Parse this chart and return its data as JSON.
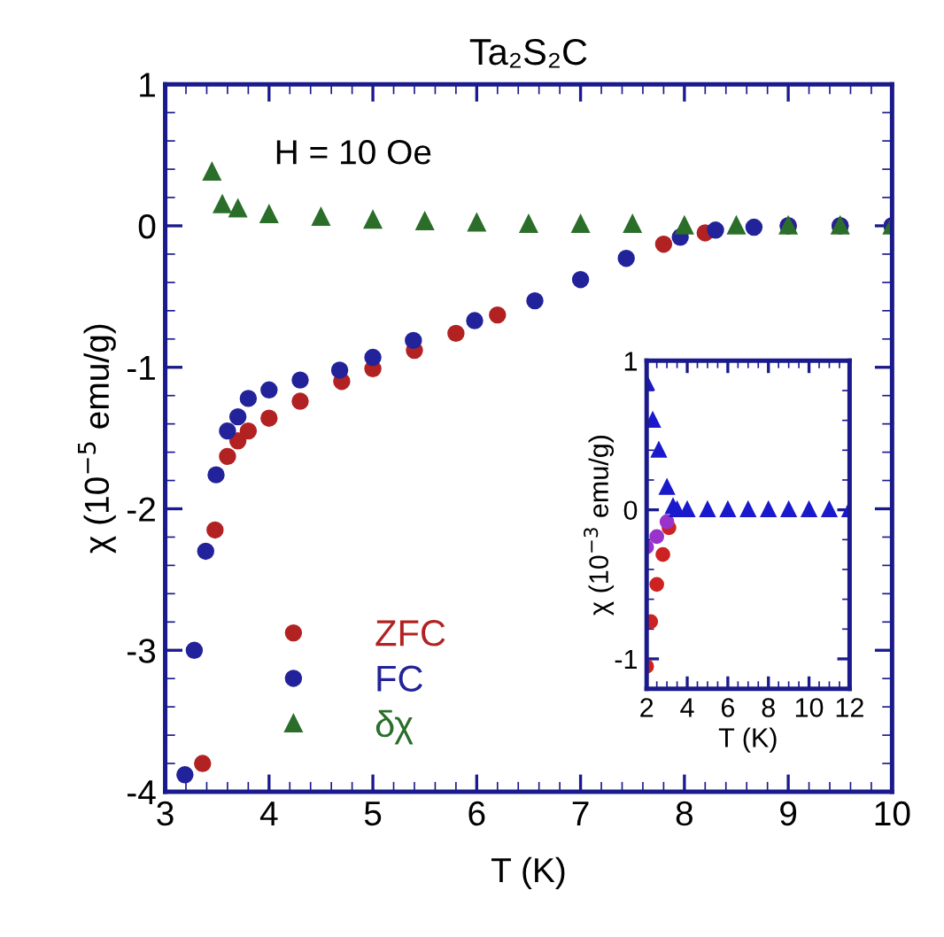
{
  "chart_data": [
    {
      "type": "scatter",
      "title": "Ta₂S₂C",
      "xlabel": "T (K)",
      "ylabel": "χ (10$^{−5}$ emu/g)",
      "annotations": [
        "H = 10 Oe"
      ],
      "xlim": [
        3,
        10
      ],
      "ylim": [
        -4,
        1
      ],
      "xticks": [
        3,
        4,
        5,
        6,
        7,
        8,
        9,
        10
      ],
      "yticks": [
        -4,
        -3,
        -2,
        -1,
        0,
        1
      ],
      "grid": false,
      "legend": "bottom left",
      "series": [
        {
          "name": "ZFC",
          "color": "#b22222",
          "marker": "circle",
          "x": [
            3.36,
            3.48,
            3.6,
            3.7,
            3.8,
            4.0,
            4.3,
            4.7,
            5.0,
            5.4,
            5.8,
            6.2,
            6.6,
            7.0,
            7.4,
            7.8,
            8.2,
            8.6,
            9.0,
            9.5,
            10.0
          ],
          "values": [
            -3.8,
            -2.15,
            -1.63,
            -1.52,
            -1.45,
            -1.36,
            -1.24,
            -1.1,
            -1.01,
            -0.88,
            -0.76,
            -0.63,
            null,
            null,
            null,
            -0.13,
            -0.05,
            null,
            0,
            0,
            0
          ]
        },
        {
          "name": "FC",
          "color": "#22229a",
          "marker": "circle",
          "x": [
            3.19,
            3.28,
            3.39,
            3.49,
            3.6,
            3.7,
            3.8,
            4.0,
            4.3,
            4.68,
            5.0,
            5.39,
            5.98,
            6.56,
            7.0,
            7.44,
            7.96,
            8.3,
            8.67,
            9.0,
            9.5,
            10.0
          ],
          "values": [
            -3.88,
            -3.0,
            -2.3,
            -1.76,
            -1.45,
            -1.35,
            -1.22,
            -1.16,
            -1.09,
            -1.02,
            -0.93,
            -0.81,
            -0.67,
            -0.53,
            -0.38,
            -0.23,
            -0.08,
            -0.03,
            -0.01,
            0,
            0,
            0
          ]
        },
        {
          "name": "δχ",
          "color": "#2a6e2a",
          "marker": "triangle",
          "x": [
            3.45,
            3.55,
            3.7,
            4.0,
            4.5,
            5.0,
            5.5,
            6.0,
            6.5,
            7.0,
            7.5,
            8.0,
            8.5,
            9.0,
            9.5,
            10.0
          ],
          "values": [
            0.38,
            0.15,
            0.12,
            0.08,
            0.06,
            0.04,
            0.03,
            0.02,
            0.01,
            0.01,
            0.01,
            0,
            0,
            0,
            0,
            0
          ]
        }
      ]
    },
    {
      "type": "scatter",
      "xlabel": "T (K)",
      "ylabel": "χ (10$^{−3}$ emu/g)",
      "xlim": [
        2,
        12
      ],
      "ylim": [
        -1.2,
        1
      ],
      "xticks": [
        2,
        4,
        6,
        8,
        10,
        12
      ],
      "yticks": [
        -1,
        0,
        1
      ],
      "grid": false,
      "series": [
        {
          "color": "#cc2222",
          "marker": "circle",
          "x": [
            2.0,
            2.2,
            2.5,
            2.8,
            3.1
          ],
          "values": [
            -1.05,
            -0.75,
            -0.5,
            -0.3,
            -0.12
          ]
        },
        {
          "color": "#9933cc",
          "marker": "circle",
          "x": [
            2.0,
            2.5,
            3.0
          ],
          "values": [
            -0.25,
            -0.18,
            -0.08
          ]
        },
        {
          "color": "#1a1acc",
          "marker": "triangle",
          "x": [
            2.0,
            2.3,
            2.6,
            3.0,
            3.3,
            3.5,
            4,
            5,
            6,
            7,
            8,
            9,
            10,
            11,
            12
          ],
          "values": [
            0.85,
            0.6,
            0.4,
            0.15,
            0.02,
            0,
            0,
            0,
            0,
            0,
            0,
            0,
            0,
            0,
            0
          ]
        }
      ]
    }
  ]
}
